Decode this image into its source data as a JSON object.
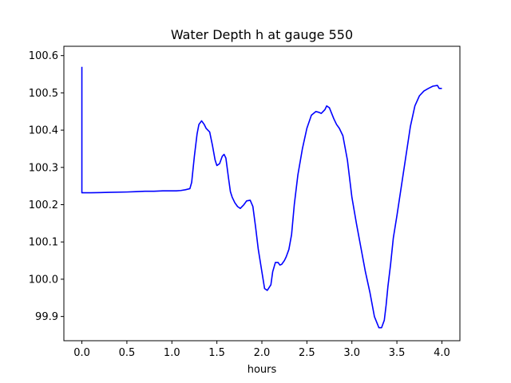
{
  "chart_data": {
    "type": "line",
    "title": "Water Depth h at gauge 550",
    "xlabel": "hours",
    "ylabel": "",
    "xlim": [
      -0.2,
      4.2
    ],
    "ylim": [
      99.835,
      100.625
    ],
    "grid": false,
    "x_ticks": [
      0.0,
      0.5,
      1.0,
      1.5,
      2.0,
      2.5,
      3.0,
      3.5,
      4.0
    ],
    "x_tick_labels": [
      "0.0",
      "0.5",
      "1.0",
      "1.5",
      "2.0",
      "2.5",
      "3.0",
      "3.5",
      "4.0"
    ],
    "y_ticks": [
      99.9,
      100.0,
      100.1,
      100.2,
      100.3,
      100.4,
      100.5,
      100.6
    ],
    "y_tick_labels": [
      "99.9",
      "100.0",
      "100.1",
      "100.2",
      "100.3",
      "100.4",
      "100.5",
      "100.6"
    ],
    "series": [
      {
        "color": "#0000ff",
        "x": [
          0.0,
          0.0,
          0.005,
          0.1,
          0.3,
          0.5,
          0.6,
          0.7,
          0.8,
          0.9,
          1.0,
          1.05,
          1.1,
          1.15,
          1.2,
          1.22,
          1.25,
          1.28,
          1.3,
          1.33,
          1.36,
          1.38,
          1.42,
          1.45,
          1.48,
          1.5,
          1.53,
          1.56,
          1.58,
          1.6,
          1.63,
          1.65,
          1.67,
          1.7,
          1.73,
          1.76,
          1.8,
          1.83,
          1.87,
          1.9,
          1.93,
          1.96,
          2.0,
          2.03,
          2.06,
          2.1,
          2.12,
          2.15,
          2.18,
          2.2,
          2.22,
          2.25,
          2.27,
          2.3,
          2.33,
          2.36,
          2.4,
          2.45,
          2.5,
          2.55,
          2.6,
          2.63,
          2.66,
          2.7,
          2.72,
          2.75,
          2.8,
          2.83,
          2.86,
          2.9,
          2.95,
          3.0,
          3.05,
          3.1,
          3.15,
          3.2,
          3.25,
          3.3,
          3.33,
          3.36,
          3.38,
          3.4,
          3.43,
          3.46,
          3.5,
          3.55,
          3.6,
          3.65,
          3.7,
          3.75,
          3.8,
          3.85,
          3.9,
          3.95,
          3.97,
          4.0
        ],
        "values": [
          100.57,
          100.232,
          100.232,
          100.232,
          100.233,
          100.234,
          100.235,
          100.236,
          100.236,
          100.237,
          100.237,
          100.237,
          100.238,
          100.24,
          100.243,
          100.26,
          100.33,
          100.39,
          100.415,
          100.425,
          100.415,
          100.405,
          100.395,
          100.36,
          100.32,
          100.305,
          100.31,
          100.33,
          100.335,
          100.325,
          100.27,
          100.235,
          100.22,
          100.205,
          100.195,
          100.19,
          100.2,
          100.21,
          100.212,
          100.195,
          100.14,
          100.08,
          100.02,
          99.975,
          99.97,
          99.985,
          100.02,
          100.045,
          100.045,
          100.038,
          100.04,
          100.05,
          100.06,
          100.08,
          100.12,
          100.2,
          100.28,
          100.35,
          100.405,
          100.44,
          100.45,
          100.448,
          100.445,
          100.455,
          100.465,
          100.46,
          100.43,
          100.415,
          100.405,
          100.385,
          100.32,
          100.22,
          100.15,
          100.085,
          100.02,
          99.965,
          99.9,
          99.87,
          99.87,
          99.89,
          99.93,
          99.98,
          100.04,
          100.11,
          100.17,
          100.25,
          100.33,
          100.41,
          100.465,
          100.492,
          100.505,
          100.512,
          100.518,
          100.52,
          100.512,
          100.512
        ]
      }
    ]
  }
}
